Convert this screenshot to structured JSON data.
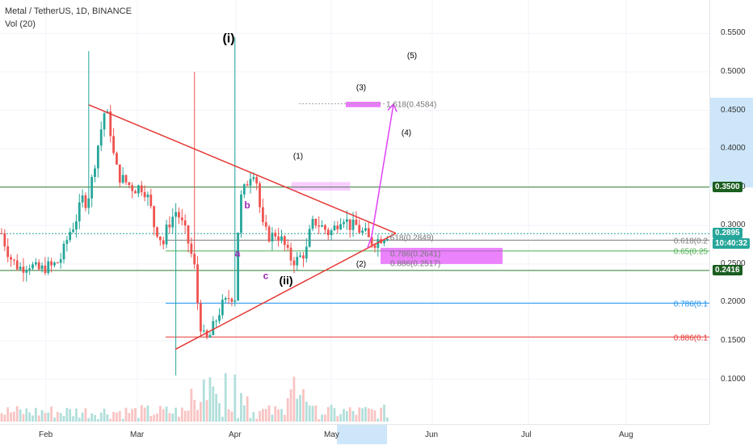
{
  "header": {
    "symbol_line": "Metal / TetherUS, 1D, BINANCE",
    "indicator_line": "Vol (20)"
  },
  "chart_data": {
    "type": "candlestick",
    "symbol": "Metal / TetherUS",
    "interval": "1D",
    "exchange": "BINANCE",
    "x_axis_labels": [
      "Feb",
      "Mar",
      "Apr",
      "May",
      "Jun",
      "Jul",
      "Aug"
    ],
    "y_axis_ticks": [
      0.1,
      0.15,
      0.2,
      0.25,
      0.3,
      0.35,
      0.4,
      0.45,
      0.5,
      0.55
    ],
    "y_axis_tick_labels": [
      "0.1000",
      "0.1500",
      "0.2000",
      "0.2500",
      "0.3000",
      "0.3500",
      "0.4000",
      "0.4500",
      "0.5000",
      "0.5500"
    ],
    "ylim": [
      0.045,
      0.585
    ],
    "price_tags": [
      {
        "label": "0.3500",
        "value": 0.35,
        "bg": "#1b5e20",
        "fg": "#ffffff"
      },
      {
        "label": "0.2895",
        "value": 0.2895,
        "bg": "#26a69a",
        "fg": "#ffffff"
      },
      {
        "label": "10:40:32",
        "value": 0.2765,
        "bg": "#26a69a",
        "fg": "#ffffff"
      },
      {
        "label": "0.2416",
        "value": 0.2416,
        "bg": "#1b5e20",
        "fg": "#ffffff"
      }
    ],
    "horizontal_levels": [
      {
        "value": 0.35,
        "color": "#2e7d32"
      },
      {
        "value": 0.2416,
        "color": "#2e7d32"
      },
      {
        "value": 0.2895,
        "color": "#26a69a",
        "dash": true
      }
    ],
    "fib_lines": [
      {
        "label": "0.618(0.2",
        "value": 0.281,
        "color": "#7d7d7d"
      },
      {
        "label": "0.65(0.25",
        "value": 0.267,
        "color": "#4caf50"
      },
      {
        "label": "0.786(0.1",
        "value": 0.199,
        "color": "#2196f3"
      },
      {
        "label": "0.886(0.1",
        "value": 0.155,
        "color": "#e53935"
      }
    ],
    "fib_short_labels": [
      {
        "label": ".618(0.2849)",
        "value": 0.2849
      },
      {
        "label": "0.786(0.2641)",
        "value": 0.2641
      },
      {
        "label": "0.886(0.2517)",
        "value": 0.2517
      },
      {
        "label": "1.618(0.4584)",
        "value": 0.4584
      }
    ],
    "wave_labels": [
      {
        "text": "(i)",
        "color": "#000000"
      },
      {
        "text": "(ii)",
        "color": "#000000"
      },
      {
        "text": "a",
        "color": "#9c27b0"
      },
      {
        "text": "b",
        "color": "#9c27b0"
      },
      {
        "text": "c",
        "color": "#9c27b0"
      },
      {
        "text": "(1)",
        "color": "#000000"
      },
      {
        "text": "(2)",
        "color": "#000000"
      },
      {
        "text": "(3)",
        "color": "#000000"
      },
      {
        "text": "(4)",
        "color": "#000000"
      },
      {
        "text": "(5)",
        "color": "#000000"
      }
    ],
    "colors": {
      "up": "#26a69a",
      "down": "#ef5350",
      "triangle": "#e53935",
      "projection_arrow": "#e040fb",
      "zone_fill": "#e040fb",
      "highlight": "#cde6fa"
    },
    "seed_close": [
      0.29,
      0.272,
      0.258,
      0.25,
      0.245,
      0.247,
      0.251,
      0.246,
      0.242,
      0.243,
      0.247,
      0.246,
      0.25,
      0.255,
      0.27,
      0.29,
      0.3,
      0.315,
      0.335,
      0.33,
      0.355,
      0.39,
      0.42,
      0.45,
      0.435,
      0.39,
      0.365,
      0.36,
      0.355,
      0.35,
      0.348,
      0.352,
      0.345,
      0.33,
      0.3,
      0.29,
      0.275,
      0.3,
      0.31,
      0.32,
      0.305,
      0.29,
      0.27,
      0.245,
      0.18,
      0.155,
      0.15,
      0.165,
      0.18,
      0.195,
      0.2,
      0.21,
      0.205,
      0.33,
      0.345,
      0.36,
      0.375,
      0.355,
      0.3,
      0.29,
      0.285,
      0.29,
      0.285,
      0.275,
      0.26,
      0.255,
      0.255,
      0.262,
      0.268,
      0.3,
      0.305,
      0.3,
      0.296,
      0.29,
      0.295,
      0.305,
      0.315,
      0.305,
      0.298,
      0.3,
      0.292,
      0.29,
      0.28,
      0.278,
      0.282,
      0.286,
      0.2895
    ]
  }
}
